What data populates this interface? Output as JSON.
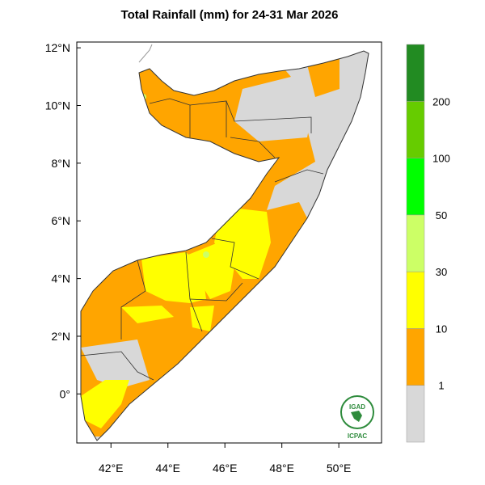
{
  "title": "Total Rainfall (mm) for 24-31 Mar 2026",
  "map": {
    "lat_ticks": [
      "12°N",
      "10°N",
      "8°N",
      "6°N",
      "4°N",
      "2°N",
      "0°"
    ],
    "lon_ticks": [
      "42°E",
      "44°E",
      "46°E",
      "48°E",
      "50°E"
    ],
    "lat_values": [
      12,
      10,
      8,
      6,
      4,
      2,
      0
    ],
    "lon_values": [
      42,
      44,
      46,
      48,
      50
    ],
    "lon_range": [
      40.8,
      51.5
    ],
    "lat_range": [
      -1.7,
      12.2
    ]
  },
  "colorbar": {
    "levels": [
      "1",
      "10",
      "30",
      "50",
      "100",
      "200"
    ],
    "colors": [
      "#d8d8d8",
      "#ffa500",
      "#ffff00",
      "#ccff66",
      "#00ff00",
      "#66cc00",
      "#228b22"
    ]
  },
  "logo": {
    "top_text": "IGAD",
    "bottom_text": "ICPAC"
  }
}
